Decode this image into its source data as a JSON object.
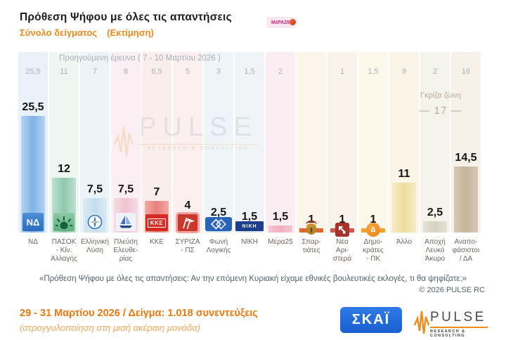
{
  "header": {
    "title": "Πρόθεση Ψήφου με όλες τις απαντήσεις",
    "subtitle": "Σύνολο δείγματος",
    "subtitle_note": "(Εκτίμηση)"
  },
  "chart": {
    "previous_caption": "Προηγούμενη έρευνα ( 7 - 10 Μαρτίου 2026 )",
    "gray_zone_label": "Γκρίζα ζώνη",
    "gray_zone_value": "— 17 —",
    "watermark_title": "PULSE",
    "watermark_subtitle": "RESEARCH & CONSULTING"
  },
  "chart_data": {
    "type": "bar",
    "title": "Πρόθεση Ψήφου με όλες τις απαντήσεις — Σύνολο δείγματος (Εκτίμηση)",
    "categories": [
      "ΝΔ",
      "ΠΑΣΟΚ - Κίν. Αλλαγής",
      "Ελληνική Λύση",
      "Πλεύση Ελευθερίας",
      "ΚΚΕ",
      "ΣΥΡΙΖΑ - ΠΣ",
      "Φωνή Λογικής",
      "ΝΙΚΗ",
      "Μέρα25",
      "Σπαρτιάτες",
      "Νέα Αριστερά",
      "Δημοκράτες - ΠΚ",
      "Άλλο",
      "Αποχή Λευκό Άκυρο",
      "Αναποφάσιστοι / ΔΑ"
    ],
    "series": [
      {
        "name": "Εκτίμηση (29 - 31 Μαρτίου 2026)",
        "values": [
          25.5,
          12,
          7.5,
          7.5,
          7,
          4,
          2.5,
          1.5,
          1.5,
          1,
          1,
          1,
          11,
          2.5,
          14.5
        ]
      },
      {
        "name": "Προηγούμενη έρευνα ( 7 - 10 Μαρτίου 2026 )",
        "values": [
          25.5,
          11,
          7,
          8,
          6.5,
          5,
          3,
          1.5,
          2,
          null,
          1,
          1.5,
          9,
          2,
          16
        ]
      }
    ],
    "annotations": [
      {
        "label": "Γκρίζα ζώνη",
        "value": 17
      }
    ],
    "ylim": [
      0,
      28
    ],
    "grid": false,
    "legend_position": "none",
    "value_label_format": "comma-decimal"
  },
  "columns": [
    {
      "id": "nd",
      "label": "ΝΔ",
      "value": "25,5",
      "prev": "25,5",
      "tint": "#eaf2f9",
      "bar_light": "#b3d4f0",
      "bar_dark": "#7fb2e6",
      "logo": {
        "icon": "nd-logo",
        "text": "ΝΔ"
      }
    },
    {
      "id": "pasok",
      "label": "ΠΑΣΟΚ\n- Κίν.\nΑλλαγής",
      "value": "12",
      "prev": "11",
      "tint": "#eef6f1",
      "bar_light": "#bfe0d0",
      "bar_dark": "#8fc7ad",
      "logo": {
        "icon": "pasok-sun-logo",
        "text": ""
      }
    },
    {
      "id": "elliniki-lysi",
      "label": "Ελληνική\nΛύση",
      "value": "7,5",
      "prev": "7",
      "tint": "#edf4f8",
      "bar_light": "#dcebf4",
      "bar_dark": "#c3dcec",
      "logo": {
        "icon": "compass-logo",
        "text": ""
      }
    },
    {
      "id": "pleusi-eleftherias",
      "label": "Πλεύση\nΕλευθε-\nρίας",
      "value": "7,5",
      "prev": "8",
      "tint": "#fbeff3",
      "bar_light": "#f6dbe3",
      "bar_dark": "#eec3d0",
      "logo": {
        "icon": "sailboat-logo",
        "text": ""
      }
    },
    {
      "id": "kke",
      "label": "ΚΚΕ",
      "value": "7",
      "prev": "6,5",
      "tint": "#faeeed",
      "bar_light": "#f2a9a4",
      "bar_dark": "#e87f7a",
      "logo": {
        "icon": "kke-logo",
        "text": "ΚΚΕ"
      }
    },
    {
      "id": "syriza",
      "label": "ΣΥΡΙΖΑ\n- ΠΣ",
      "value": "4",
      "prev": "5",
      "tint": "#fbeff0",
      "bar_light": "#f6b9b9",
      "bar_dark": "#efa0a0",
      "logo": {
        "icon": "syriza-flags-logo",
        "text": ""
      }
    },
    {
      "id": "foni-logikis",
      "label": "Φωνή\nΛογικής",
      "value": "2,5",
      "prev": "3",
      "tint": "#eef4f8",
      "bar_light": "#dde9f2",
      "bar_dark": "#c9dcea",
      "logo": {
        "icon": "foni-diamonds-logo",
        "text": ""
      }
    },
    {
      "id": "niki",
      "label": "ΝΙΚΗ",
      "value": "1,5",
      "prev": "1,5",
      "tint": "#f0f4f7",
      "bar_light": "#e2e9ee",
      "bar_dark": "#d2dde5",
      "logo": {
        "icon": "niki-logo",
        "text": "ΝΙΚΗ"
      }
    },
    {
      "id": "mera25",
      "label": "Μέρα25",
      "value": "1,5",
      "prev": "2",
      "tint": "#fbeef2",
      "bar_light": "#f7c5d2",
      "bar_dark": "#f0afc2",
      "logo": {
        "icon": "mera25-logo",
        "text": "ΜέΡΑ25"
      }
    },
    {
      "id": "spartiates",
      "label": "Σπαρ-\nτιάτες",
      "value": "1",
      "prev": "",
      "tint": "#fbf6e9",
      "bar_light": "#e0662e",
      "bar_dark": "#e0662e",
      "logo": {
        "icon": "spartan-helmet-logo",
        "text": ""
      }
    },
    {
      "id": "nea-aristera",
      "label": "Νέα\nΑρι-\nστερά",
      "value": "1",
      "prev": "1",
      "tint": "#faf3ec",
      "bar_light": "#d2574f",
      "bar_dark": "#d2574f",
      "logo": {
        "icon": "nea-aristera-arrow-logo",
        "text": ""
      }
    },
    {
      "id": "dimokrates",
      "label": "Δημο-\nκράτες\n- ΠΚ",
      "value": "1",
      "prev": "1,5",
      "tint": "#fcf8ea",
      "bar_light": "#f5a02c",
      "bar_dark": "#f5a02c",
      "logo": {
        "icon": "dimokrates-logo",
        "text": "Δ"
      }
    },
    {
      "id": "allo",
      "label": "Άλλο",
      "value": "11",
      "prev": "9",
      "tint": "#faf5e6",
      "bar_light": "#f6ecc4",
      "bar_dark": "#ecdc9e",
      "logo": null
    },
    {
      "id": "apochi",
      "label": "Αποχή\nΛευκό\nΆκυρο",
      "value": "2,5",
      "prev": "2",
      "tint": "#f4f3ec",
      "bar_light": "#e5e1d4",
      "bar_dark": "#d8d2c0",
      "logo": null
    },
    {
      "id": "anapofasistoi",
      "label": "Αναπο-\nφάσιστοι\n/ ΔΑ",
      "value": "14,5",
      "prev": "16",
      "tint": "#f6f2e9",
      "bar_light": "#d6c9b4",
      "bar_dark": "#c4b49a",
      "logo": null
    }
  ],
  "quote": "«Πρόθεση Ψήφου με όλες τις απαντήσεις: Αν την επόμενη Κυριακή είχαμε εθνικές βουλευτικές εκλογές, τι θα ψηφίζατε;»",
  "copyright": "© 2026 PULSE RC",
  "footer": {
    "line1": "29 - 31  Μαρτίου 2026  /  Δείγμα:  1.018 συνεντεύξεις",
    "line2": "(στρογγυλοποίηση στη μισή ακέραιη μονάδα)"
  },
  "brand": {
    "skai": "ΣΚΑΪ",
    "pulse": "PULSE",
    "pulse_sub": "RESEARCH & CONSULTING"
  },
  "colors": {
    "accent_orange": "#ef8a1d",
    "footer_orange": "#e8790f",
    "muted_gray": "#a6b0ba",
    "gray_zone": "#b7a99a",
    "skai_blue": "#1f6fd8"
  }
}
